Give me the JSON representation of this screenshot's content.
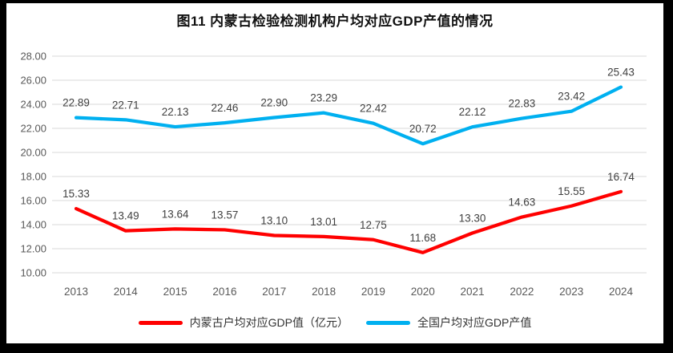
{
  "title": "图11 内蒙古检验检测机构户均对应GDP产值的情况",
  "chart_data": {
    "type": "line",
    "categories": [
      "2013",
      "2014",
      "2015",
      "2016",
      "2017",
      "2018",
      "2019",
      "2020",
      "2021",
      "2022",
      "2023",
      "2024"
    ],
    "series": [
      {
        "name": "内蒙古户均对应GDP值（亿元）",
        "color": "#FF0000",
        "values": [
          15.33,
          13.49,
          13.64,
          13.57,
          13.1,
          13.01,
          12.75,
          11.68,
          13.3,
          14.63,
          15.55,
          16.74
        ]
      },
      {
        "name": "全国户均对应GDP产值",
        "color": "#00B0F0",
        "values": [
          22.89,
          22.71,
          22.13,
          22.46,
          22.9,
          23.29,
          22.42,
          20.72,
          22.12,
          22.83,
          23.42,
          25.43
        ]
      }
    ],
    "ylim": [
      10,
      28
    ],
    "ytick_step": 2,
    "show_data_labels": true,
    "data_label_decimals": 2,
    "grid": true,
    "legend_position": "bottom",
    "gridline_color": "#D9D9D9",
    "axis_label_color": "#595959",
    "data_label_color": "#3F3F3F",
    "background_color": "#FFFFFF",
    "frame_color": "#000000"
  }
}
